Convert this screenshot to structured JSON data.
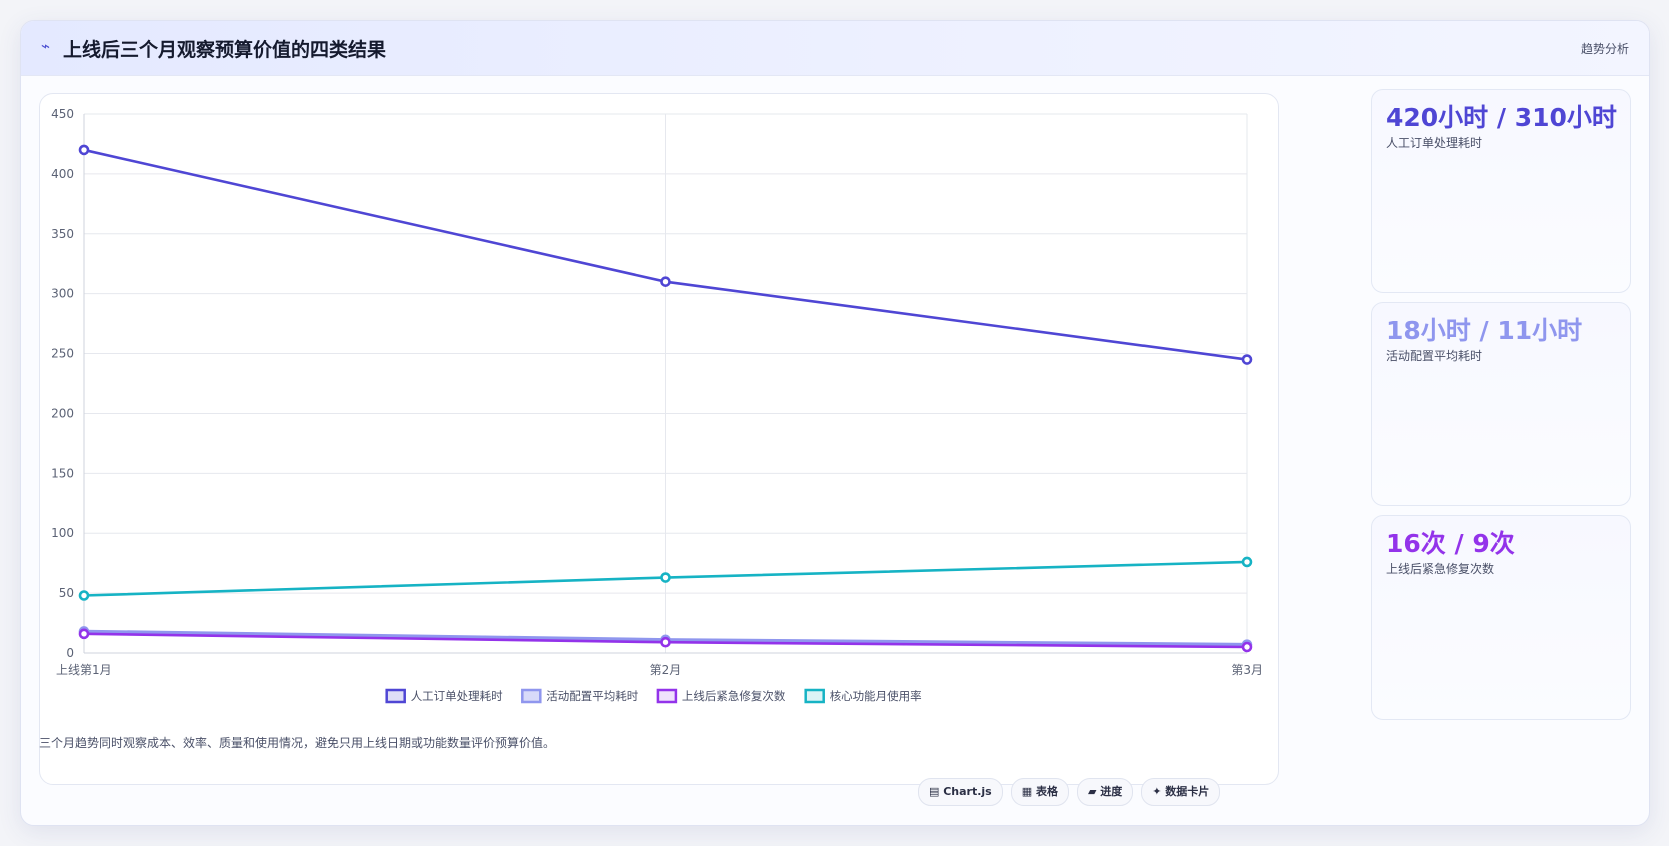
{
  "header": {
    "icon": "trend-icon",
    "title": "上线后三个月观察预算价值的四类结果",
    "right_label": "趋势分析"
  },
  "colors": {
    "s1": "#4f46d4",
    "s2": "#8f96ee",
    "s3": "#9333ea",
    "s4": "#16b3c4"
  },
  "chart_data": {
    "type": "line",
    "title": "",
    "xlabel": "",
    "ylabel": "",
    "categories": [
      "上线第1月",
      "第2月",
      "第3月"
    ],
    "ylim": [
      0,
      450
    ],
    "yticks": [
      "0",
      "50",
      "100",
      "150",
      "200",
      "250",
      "300",
      "350",
      "400",
      "450"
    ],
    "grid": true,
    "legend_position": "bottom",
    "series": [
      {
        "name": "人工订单处理耗时",
        "values": [
          420,
          310,
          245
        ]
      },
      {
        "name": "活动配置平均耗时",
        "values": [
          18,
          11,
          7
        ]
      },
      {
        "name": "上线后紧急修复次数",
        "values": [
          16,
          9,
          5
        ]
      },
      {
        "name": "核心功能月使用率",
        "values": [
          48,
          63,
          76
        ]
      }
    ]
  },
  "kpis": [
    {
      "value": "420小时 / 310小时",
      "label": "人工订单处理耗时"
    },
    {
      "value": "18小时 / 11小时",
      "label": "活动配置平均耗时"
    },
    {
      "value": "16次 / 9次",
      "label": "上线后紧急修复次数"
    }
  ],
  "footer": {
    "note": "三个月趋势同时观察成本、效率、质量和使用情况，避免只用上线日期或功能数量评价预算价值。",
    "tags": [
      "▤ Chart.js",
      "▦ 表格",
      "▰ 进度",
      "✦ 数据卡片"
    ]
  }
}
